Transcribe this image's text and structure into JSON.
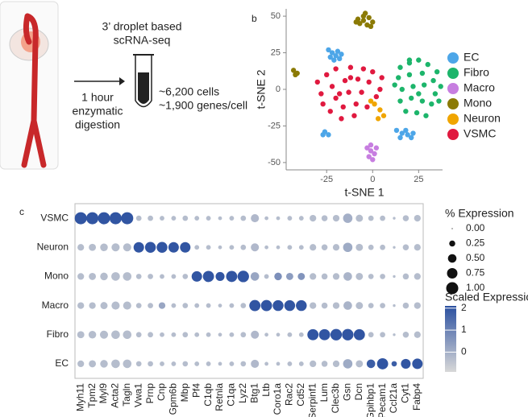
{
  "panel_labels": {
    "b": "b",
    "c": "c"
  },
  "schematic": {
    "method": [
      "3’ droplet based",
      "scRNA-seq"
    ],
    "digestion": [
      "1 hour",
      "enzymatic",
      "digestion"
    ],
    "yield": [
      "~6,200 cells",
      "~1,900 genes/cell"
    ]
  },
  "chart_data": [
    {
      "type": "scatter",
      "xlabel": "t-SNE 1",
      "ylabel": "t-SNE 2",
      "xlim": [
        -47,
        38
      ],
      "ylim": [
        -55,
        55
      ],
      "xticks": [
        -25,
        0,
        25
      ],
      "yticks": [
        -50,
        -25,
        0,
        25,
        50
      ],
      "legend": "right",
      "series": [
        {
          "name": "EC",
          "color": "#4da6e8",
          "x": [
            -22,
            -20,
            -18,
            -24,
            -21,
            -19,
            -17,
            -23,
            13,
            16,
            19,
            21,
            15,
            18,
            22,
            -26,
            -24,
            -27
          ],
          "y": [
            25,
            23,
            21,
            27,
            20,
            26,
            24,
            22,
            -28,
            -30,
            -31,
            -33,
            -33,
            -28,
            -30,
            -29,
            -31,
            -31
          ]
        },
        {
          "name": "Fibro",
          "color": "#1db56b",
          "x": [
            15,
            20,
            25,
            30,
            35,
            14,
            20,
            27,
            33,
            37,
            16,
            22,
            28,
            34,
            15,
            21,
            27,
            32,
            18,
            24,
            29,
            20,
            12,
            36,
            25
          ],
          "y": [
            15,
            18,
            20,
            17,
            12,
            8,
            10,
            11,
            6,
            2,
            0,
            2,
            3,
            -3,
            -8,
            -6,
            -8,
            -10,
            -15,
            -16,
            -18,
            20,
            3,
            -8,
            -3
          ]
        },
        {
          "name": "Macro",
          "color": "#c77ee0",
          "x": [
            -3,
            -1,
            1,
            -2,
            0,
            -1,
            2
          ],
          "y": [
            -40,
            -42,
            -44,
            -46,
            -48,
            -38,
            -40
          ]
        },
        {
          "name": "Mono",
          "color": "#8b7a05",
          "x": [
            -8,
            -5,
            -2,
            -7,
            -3,
            0,
            -5,
            -9,
            -1,
            -4,
            -43,
            -41,
            -42
          ],
          "y": [
            48,
            50,
            49,
            45,
            44,
            46,
            47,
            46,
            43,
            52,
            13,
            11,
            10
          ]
        },
        {
          "name": "Neuron",
          "color": "#f0a500",
          "x": [
            1,
            4,
            6,
            3,
            -1
          ],
          "y": [
            -10,
            -14,
            -18,
            -20,
            -8
          ]
        },
        {
          "name": "VSMC",
          "color": "#e0193f",
          "x": [
            -30,
            -25,
            -20,
            -12,
            -5,
            0,
            5,
            -28,
            -22,
            -15,
            -8,
            -2,
            4,
            -27,
            -20,
            -13,
            -6,
            2,
            -23,
            -16,
            -9,
            -3,
            -17,
            -10,
            -12,
            -18
          ],
          "y": [
            5,
            10,
            14,
            15,
            14,
            12,
            8,
            -3,
            2,
            6,
            7,
            5,
            0,
            -10,
            -6,
            -2,
            -2,
            -5,
            -15,
            -12,
            -10,
            -12,
            -20,
            -18,
            8,
            -3
          ]
        }
      ]
    },
    {
      "type": "dot",
      "categories": [
        "Myh11",
        "Tpm2",
        "Myl9",
        "Acta2",
        "Tagln",
        "Vwa1",
        "Prnp",
        "Cnp",
        "Gpm6b",
        "Mbp",
        "Pf4",
        "C1qb",
        "Retnla",
        "C1qa",
        "Lyz2",
        "Btg1",
        "Ltb",
        "Coro1a",
        "Rac2",
        "Cd52",
        "Serpinf1",
        "Lum",
        "Clec3b",
        "Gsn",
        "Dcn",
        "Gpihbp1",
        "Pecam1",
        "Ccl21a",
        "Cyt1",
        "Fabp4"
      ],
      "series": [
        {
          "name": "VSMC",
          "values": [
            1,
            1,
            1,
            1,
            1,
            0.2,
            0.2,
            0.15,
            0.15,
            0.2,
            0.15,
            0.15,
            0.1,
            0.15,
            0.2,
            0.45,
            0.1,
            0.1,
            0.15,
            0.15,
            0.3,
            0.25,
            0.3,
            0.6,
            0.35,
            0.2,
            0.2,
            0.05,
            0.25,
            0.3
          ],
          "expression": [
            2,
            2,
            2,
            2,
            2,
            -0.3,
            -0.3,
            -0.3,
            -0.3,
            -0.3,
            -0.3,
            -0.3,
            -0.3,
            -0.3,
            -0.3,
            -0.2,
            -0.3,
            -0.3,
            -0.3,
            -0.3,
            -0.3,
            -0.3,
            -0.3,
            0,
            -0.3,
            -0.3,
            -0.3,
            -0.3,
            -0.3,
            -0.3
          ]
        },
        {
          "name": "Neuron",
          "values": [
            0.3,
            0.35,
            0.4,
            0.45,
            0.45,
            0.75,
            0.8,
            0.8,
            0.75,
            0.75,
            0.15,
            0.15,
            0.1,
            0.15,
            0.2,
            0.45,
            0.1,
            0.1,
            0.15,
            0.15,
            0.3,
            0.25,
            0.3,
            0.6,
            0.35,
            0.2,
            0.2,
            0.05,
            0.25,
            0.3
          ],
          "expression": [
            -0.3,
            -0.3,
            -0.3,
            -0.3,
            -0.3,
            2,
            2,
            2,
            2,
            2,
            -0.3,
            -0.3,
            -0.3,
            -0.3,
            -0.3,
            -0.2,
            -0.3,
            -0.3,
            -0.3,
            -0.3,
            -0.3,
            -0.3,
            -0.3,
            0.1,
            -0.3,
            -0.3,
            -0.3,
            -0.3,
            -0.3,
            -0.3
          ]
        },
        {
          "name": "Mono",
          "values": [
            0.3,
            0.35,
            0.4,
            0.5,
            0.5,
            0.2,
            0.2,
            0.15,
            0.15,
            0.2,
            0.75,
            0.85,
            0.55,
            0.85,
            0.9,
            0.5,
            0.15,
            0.4,
            0.35,
            0.35,
            0.3,
            0.25,
            0.3,
            0.5,
            0.35,
            0.2,
            0.2,
            0.05,
            0.25,
            0.3
          ],
          "expression": [
            -0.3,
            -0.3,
            -0.3,
            -0.3,
            -0.3,
            -0.3,
            -0.3,
            -0.3,
            -0.3,
            -0.3,
            2,
            2,
            2,
            2,
            2,
            0.2,
            -0.3,
            0.7,
            0.4,
            0.6,
            -0.3,
            -0.3,
            -0.3,
            -0.1,
            -0.3,
            -0.3,
            -0.3,
            -0.3,
            -0.3,
            -0.3
          ]
        },
        {
          "name": "Macro",
          "values": [
            0.3,
            0.3,
            0.35,
            0.45,
            0.45,
            0.2,
            0.2,
            0.3,
            0.15,
            0.2,
            0.15,
            0.15,
            0.1,
            0.15,
            0.2,
            0.85,
            0.85,
            0.8,
            0.8,
            0.8,
            0.3,
            0.25,
            0.3,
            0.5,
            0.35,
            0.2,
            0.2,
            0.05,
            0.25,
            0.3
          ],
          "expression": [
            -0.3,
            -0.3,
            -0.3,
            -0.3,
            -0.3,
            -0.3,
            -0.3,
            0.2,
            -0.3,
            -0.3,
            -0.3,
            -0.3,
            -0.3,
            -0.3,
            -0.3,
            2,
            2,
            2,
            2,
            2,
            -0.3,
            -0.3,
            -0.3,
            -0.1,
            -0.3,
            -0.3,
            -0.3,
            -0.3,
            -0.3,
            -0.3
          ]
        },
        {
          "name": "Fibro",
          "values": [
            0.35,
            0.4,
            0.45,
            0.5,
            0.5,
            0.2,
            0.2,
            0.15,
            0.15,
            0.2,
            0.15,
            0.15,
            0.1,
            0.15,
            0.2,
            0.45,
            0.1,
            0.1,
            0.15,
            0.15,
            0.85,
            0.85,
            0.9,
            0.9,
            0.85,
            0.2,
            0.2,
            0.05,
            0.25,
            0.3
          ],
          "expression": [
            -0.3,
            -0.3,
            -0.3,
            -0.3,
            -0.3,
            -0.3,
            -0.3,
            -0.3,
            -0.3,
            -0.3,
            -0.3,
            -0.3,
            -0.3,
            -0.3,
            -0.3,
            -0.2,
            -0.3,
            -0.3,
            -0.3,
            -0.3,
            2,
            2,
            2,
            2,
            2,
            -0.3,
            -0.3,
            -0.3,
            -0.3,
            -0.3
          ]
        },
        {
          "name": "EC",
          "values": [
            0.3,
            0.35,
            0.4,
            0.5,
            0.5,
            0.2,
            0.2,
            0.15,
            0.15,
            0.2,
            0.15,
            0.15,
            0.1,
            0.15,
            0.2,
            0.45,
            0.1,
            0.1,
            0.15,
            0.15,
            0.3,
            0.25,
            0.3,
            0.6,
            0.35,
            0.5,
            0.85,
            0.2,
            0.65,
            0.75
          ],
          "expression": [
            -0.3,
            -0.3,
            -0.3,
            -0.3,
            -0.3,
            -0.3,
            -0.3,
            -0.3,
            -0.3,
            -0.3,
            -0.3,
            -0.3,
            -0.3,
            -0.3,
            -0.3,
            -0.2,
            -0.3,
            -0.3,
            -0.3,
            -0.3,
            -0.3,
            -0.3,
            -0.3,
            0.1,
            -0.3,
            1.8,
            2,
            1.8,
            2,
            2
          ]
        }
      ],
      "size_legend": {
        "title": "% Expression",
        "ticks": [
          {
            "value": 0,
            "label": "0.00"
          },
          {
            "value": 0.25,
            "label": "0.25"
          },
          {
            "value": 0.5,
            "label": "0.50"
          },
          {
            "value": 0.75,
            "label": "0.75"
          },
          {
            "value": 1,
            "label": "1.00"
          }
        ]
      },
      "color_legend": {
        "title": "Scaled Expression",
        "lim": [
          -0.9,
          2.1
        ],
        "ticks": [
          0,
          1,
          2
        ],
        "low_color": "#d8d8d8",
        "high_color": "#2b50a0"
      }
    }
  ]
}
